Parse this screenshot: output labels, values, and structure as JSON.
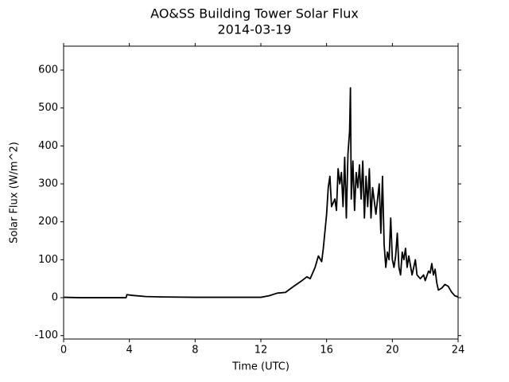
{
  "chart_data": {
    "type": "line",
    "title": "AO&SS Building Tower Solar Flux",
    "subtitle": "2014-03-19",
    "xlabel": "Time (UTC)",
    "ylabel": "Solar Flux (W/m^2)",
    "xlim": [
      0,
      24
    ],
    "xticks": [
      0,
      4,
      8,
      12,
      16,
      20,
      24
    ],
    "ylim": [
      -109,
      663
    ],
    "yticks": [
      -100,
      0,
      100,
      200,
      300,
      400,
      500,
      600
    ],
    "grid": false,
    "series": [
      {
        "name": "Solar Flux",
        "color": "#000000",
        "x": [
          0,
          1,
          2,
          3,
          3.8,
          3.85,
          4.2,
          5,
          6,
          8,
          10,
          12,
          12.5,
          13,
          13.5,
          14,
          14.5,
          14.8,
          15,
          15.3,
          15.5,
          15.7,
          15.8,
          16,
          16.1,
          16.2,
          16.3,
          16.5,
          16.6,
          16.7,
          16.8,
          16.9,
          17,
          17.1,
          17.2,
          17.3,
          17.4,
          17.45,
          17.5,
          17.6,
          17.7,
          17.8,
          17.9,
          18,
          18.1,
          18.2,
          18.3,
          18.4,
          18.5,
          18.6,
          18.7,
          18.8,
          19,
          19.2,
          19.3,
          19.4,
          19.5,
          19.6,
          19.7,
          19.8,
          19.9,
          20,
          20.1,
          20.2,
          20.3,
          20.4,
          20.5,
          20.6,
          20.7,
          20.8,
          20.9,
          21,
          21.2,
          21.4,
          21.5,
          21.7,
          21.9,
          22,
          22.2,
          22.3,
          22.4,
          22.5,
          22.6,
          22.7,
          22.8,
          23,
          23.2,
          23.4,
          23.6,
          23.8,
          24
        ],
        "values": [
          1,
          0,
          0,
          0,
          0,
          8,
          6,
          3,
          2,
          1,
          1,
          1,
          5,
          12,
          14,
          30,
          45,
          55,
          50,
          80,
          110,
          95,
          130,
          220,
          290,
          320,
          240,
          260,
          230,
          340,
          300,
          330,
          240,
          370,
          210,
          380,
          440,
          553,
          260,
          360,
          230,
          330,
          290,
          350,
          260,
          360,
          210,
          320,
          240,
          340,
          210,
          290,
          220,
          300,
          170,
          320,
          140,
          80,
          120,
          100,
          210,
          100,
          80,
          110,
          170,
          80,
          60,
          120,
          100,
          130,
          80,
          110,
          60,
          100,
          60,
          50,
          60,
          45,
          70,
          65,
          90,
          60,
          75,
          40,
          20,
          25,
          35,
          30,
          15,
          5,
          2
        ]
      }
    ]
  }
}
